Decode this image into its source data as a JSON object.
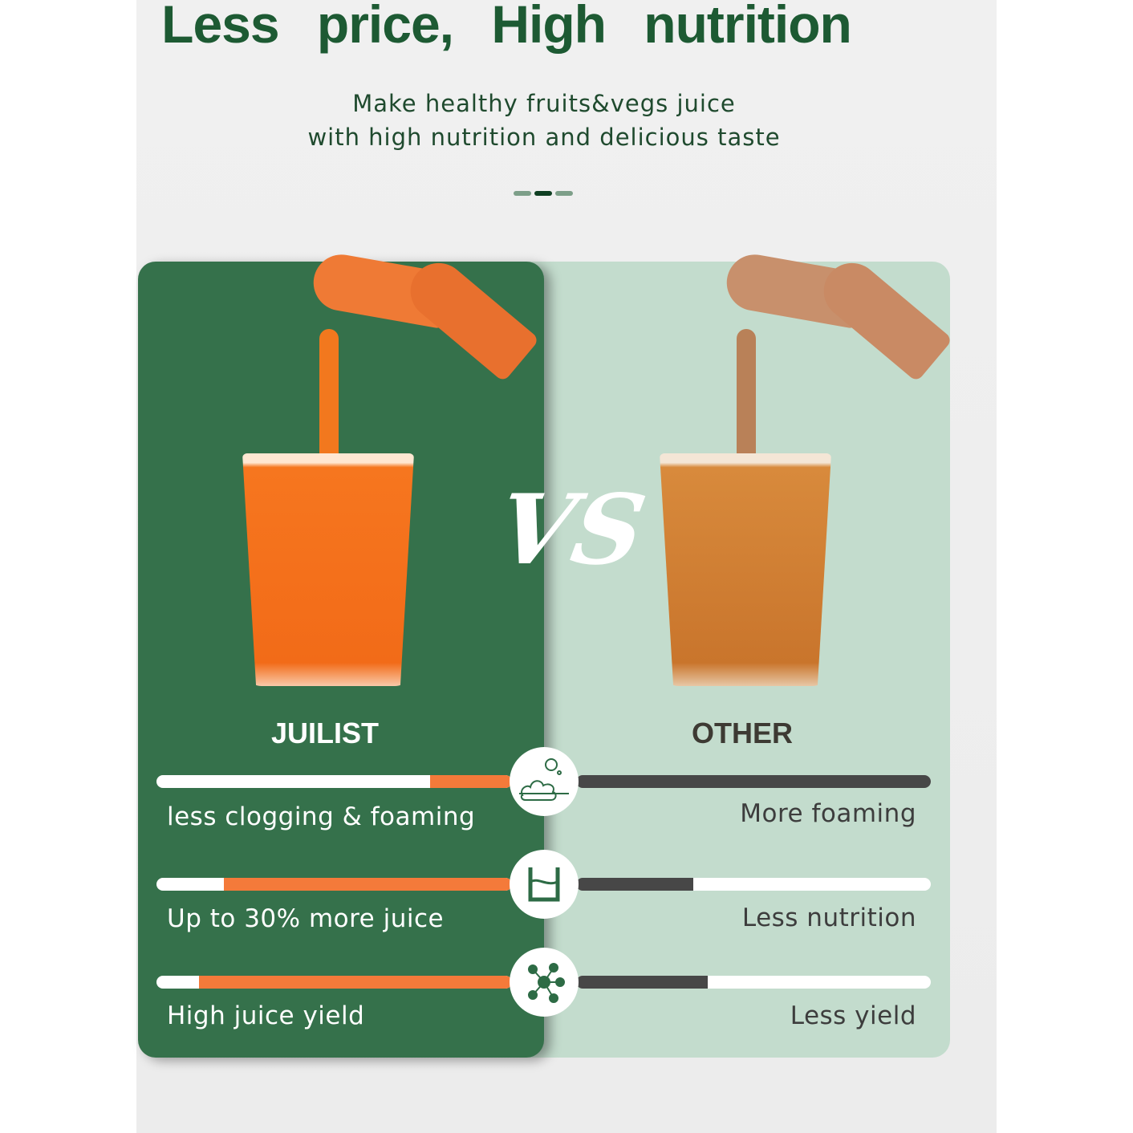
{
  "header": {
    "title": "Less price,  High nutrition",
    "subtitle_line1": "Make healthy fruits&vegs juice",
    "subtitle_line2": "with high nutrition and delicious taste"
  },
  "comparison": {
    "left_brand": "JUILIST",
    "right_brand": "OTHER",
    "vs_label": "VS",
    "colors": {
      "left_card": "#35714b",
      "right_card": "#c3dccd",
      "left_fill": "#f47a3a",
      "right_fill": "#474747",
      "title": "#1d5a33"
    },
    "rows": [
      {
        "icon": "foam-bubbles-icon",
        "left_label": "less clogging & foaming",
        "left_level": 0.23,
        "right_label": "More foaming",
        "right_level": 1.0
      },
      {
        "icon": "cup-icon",
        "left_label": "Up to 30% more juice",
        "left_level": 0.81,
        "right_label": "Less nutrition",
        "right_level": 0.33
      },
      {
        "icon": "molecule-icon",
        "left_label": "High juice yield",
        "left_level": 0.88,
        "right_label": "Less yield",
        "right_level": 0.37
      }
    ]
  }
}
